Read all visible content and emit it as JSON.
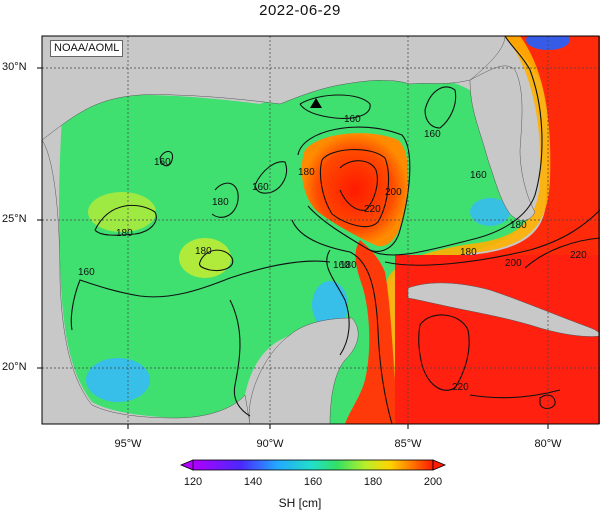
{
  "title": "2022-06-29",
  "badge": "NOAA/AOML",
  "lat_labels": [
    "30°N",
    "25°N",
    "20°N"
  ],
  "lon_labels": [
    "95°W",
    "90°W",
    "85°W",
    "80°W"
  ],
  "colorbar": {
    "ticks": [
      "120",
      "140",
      "160",
      "180",
      "200"
    ],
    "label": "SH [cm]"
  },
  "contour_labels": [
    "160",
    "160",
    "180",
    "160",
    "180",
    "160",
    "180",
    "160",
    "180",
    "180",
    "220",
    "200",
    "180",
    "160",
    "160",
    "180",
    "200",
    "220",
    "220"
  ],
  "colors": {
    "land": "#c8c8c8",
    "water_low": "#20c8ff",
    "water_mid": "#33e066",
    "water_high": "#ff2a0a"
  },
  "marker": "triangle-marker"
}
